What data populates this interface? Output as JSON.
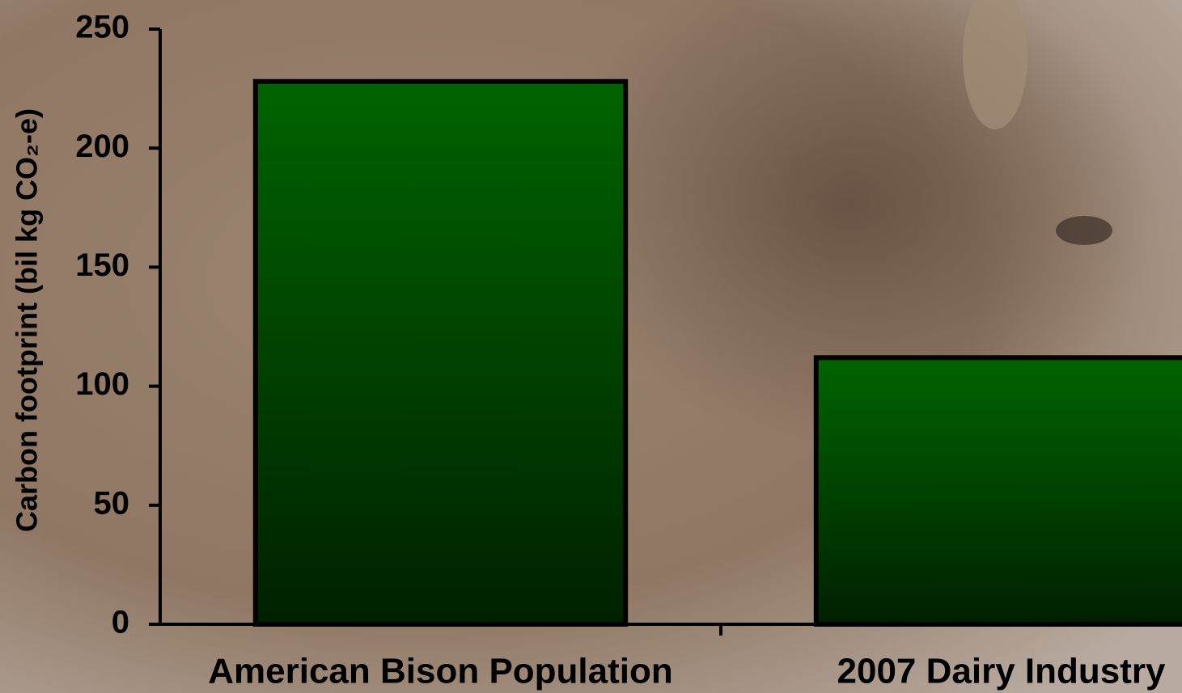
{
  "chart_data": {
    "type": "bar",
    "y_label": "Carbon footprint (bil kg CO₂-e)",
    "categories": [
      "American Bison Population",
      "2007 Dairy Industry"
    ],
    "values": [
      228,
      112
    ],
    "color": "#006400",
    "ylim": [
      0,
      250
    ],
    "yticks": [
      0,
      50,
      100,
      150,
      200,
      250
    ],
    "grid": false
  }
}
